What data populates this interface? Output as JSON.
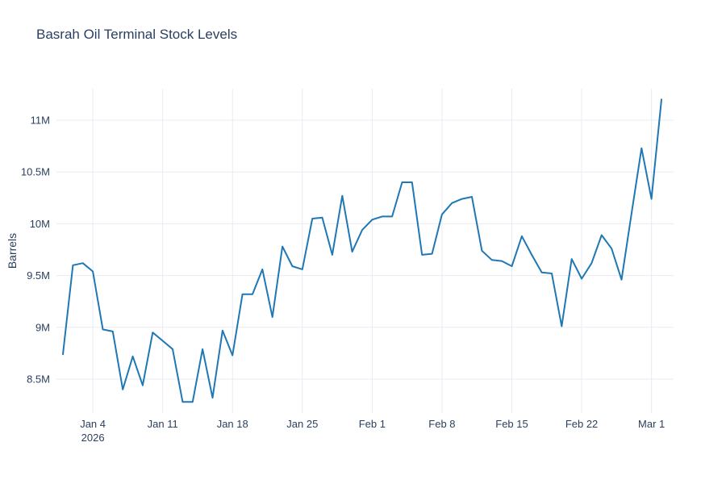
{
  "chart": {
    "title": "Basrah Oil Terminal Stock Levels",
    "y_axis_title": "Barrels"
  },
  "colors": {
    "line": "#1f77b4",
    "grid": "#e8ebf2",
    "text": "#2a3f5f",
    "background": "#ffffff"
  },
  "chart_data": {
    "type": "line",
    "title": "Basrah Oil Terminal Stock Levels",
    "xlabel": "",
    "ylabel": "Barrels",
    "unit": "millions of barrels",
    "grid": true,
    "legend": false,
    "ylim_millions": [
      8.16,
      11.31
    ],
    "x": [
      "2026-01-01",
      "2026-01-02",
      "2026-01-03",
      "2026-01-04",
      "2026-01-05",
      "2026-01-06",
      "2026-01-07",
      "2026-01-08",
      "2026-01-09",
      "2026-01-10",
      "2026-01-11",
      "2026-01-12",
      "2026-01-13",
      "2026-01-14",
      "2026-01-15",
      "2026-01-16",
      "2026-01-17",
      "2026-01-18",
      "2026-01-19",
      "2026-01-20",
      "2026-01-21",
      "2026-01-22",
      "2026-01-23",
      "2026-01-24",
      "2026-01-25",
      "2026-01-26",
      "2026-01-27",
      "2026-01-28",
      "2026-01-29",
      "2026-01-30",
      "2026-01-31",
      "2026-02-01",
      "2026-02-02",
      "2026-02-03",
      "2026-02-04",
      "2026-02-05",
      "2026-02-06",
      "2026-02-07",
      "2026-02-08",
      "2026-02-09",
      "2026-02-10",
      "2026-02-11",
      "2026-02-12",
      "2026-02-13",
      "2026-02-14",
      "2026-02-15",
      "2026-02-16",
      "2026-02-17",
      "2026-02-18",
      "2026-02-19",
      "2026-02-20",
      "2026-02-21",
      "2026-02-22",
      "2026-02-23",
      "2026-02-24",
      "2026-02-25",
      "2026-02-26",
      "2026-02-27",
      "2026-02-28",
      "2026-03-01",
      "2026-03-02"
    ],
    "y_millions": [
      8.74,
      9.6,
      9.62,
      9.54,
      8.98,
      8.96,
      8.4,
      8.72,
      8.44,
      8.95,
      8.87,
      8.79,
      8.28,
      8.28,
      8.79,
      8.32,
      8.97,
      8.73,
      9.32,
      9.32,
      9.56,
      9.1,
      9.78,
      9.59,
      9.56,
      10.05,
      10.06,
      9.7,
      10.27,
      9.73,
      9.94,
      10.04,
      10.07,
      10.07,
      10.4,
      10.4,
      9.7,
      9.71,
      10.09,
      10.2,
      10.24,
      10.26,
      9.74,
      9.65,
      9.64,
      9.59,
      9.88,
      9.7,
      9.53,
      9.52,
      9.01,
      9.66,
      9.47,
      9.62,
      9.89,
      9.76,
      9.46,
      10.1,
      10.73,
      10.24,
      11.2
    ],
    "yticks": [
      {
        "value_millions": 8.5,
        "label": "8.5M"
      },
      {
        "value_millions": 9.0,
        "label": "9M"
      },
      {
        "value_millions": 9.5,
        "label": "9.5M"
      },
      {
        "value_millions": 10.0,
        "label": "10M"
      },
      {
        "value_millions": 10.5,
        "label": "10.5M"
      },
      {
        "value_millions": 11.0,
        "label": "11M"
      }
    ],
    "xticks": [
      {
        "index": 3,
        "label": "Jan 4",
        "sublabel": "2026"
      },
      {
        "index": 10,
        "label": "Jan 11",
        "sublabel": ""
      },
      {
        "index": 17,
        "label": "Jan 18",
        "sublabel": ""
      },
      {
        "index": 24,
        "label": "Jan 25",
        "sublabel": ""
      },
      {
        "index": 31,
        "label": "Feb 1",
        "sublabel": ""
      },
      {
        "index": 38,
        "label": "Feb 8",
        "sublabel": ""
      },
      {
        "index": 45,
        "label": "Feb 15",
        "sublabel": ""
      },
      {
        "index": 52,
        "label": "Feb 22",
        "sublabel": ""
      },
      {
        "index": 59,
        "label": "Mar 1",
        "sublabel": ""
      }
    ]
  }
}
